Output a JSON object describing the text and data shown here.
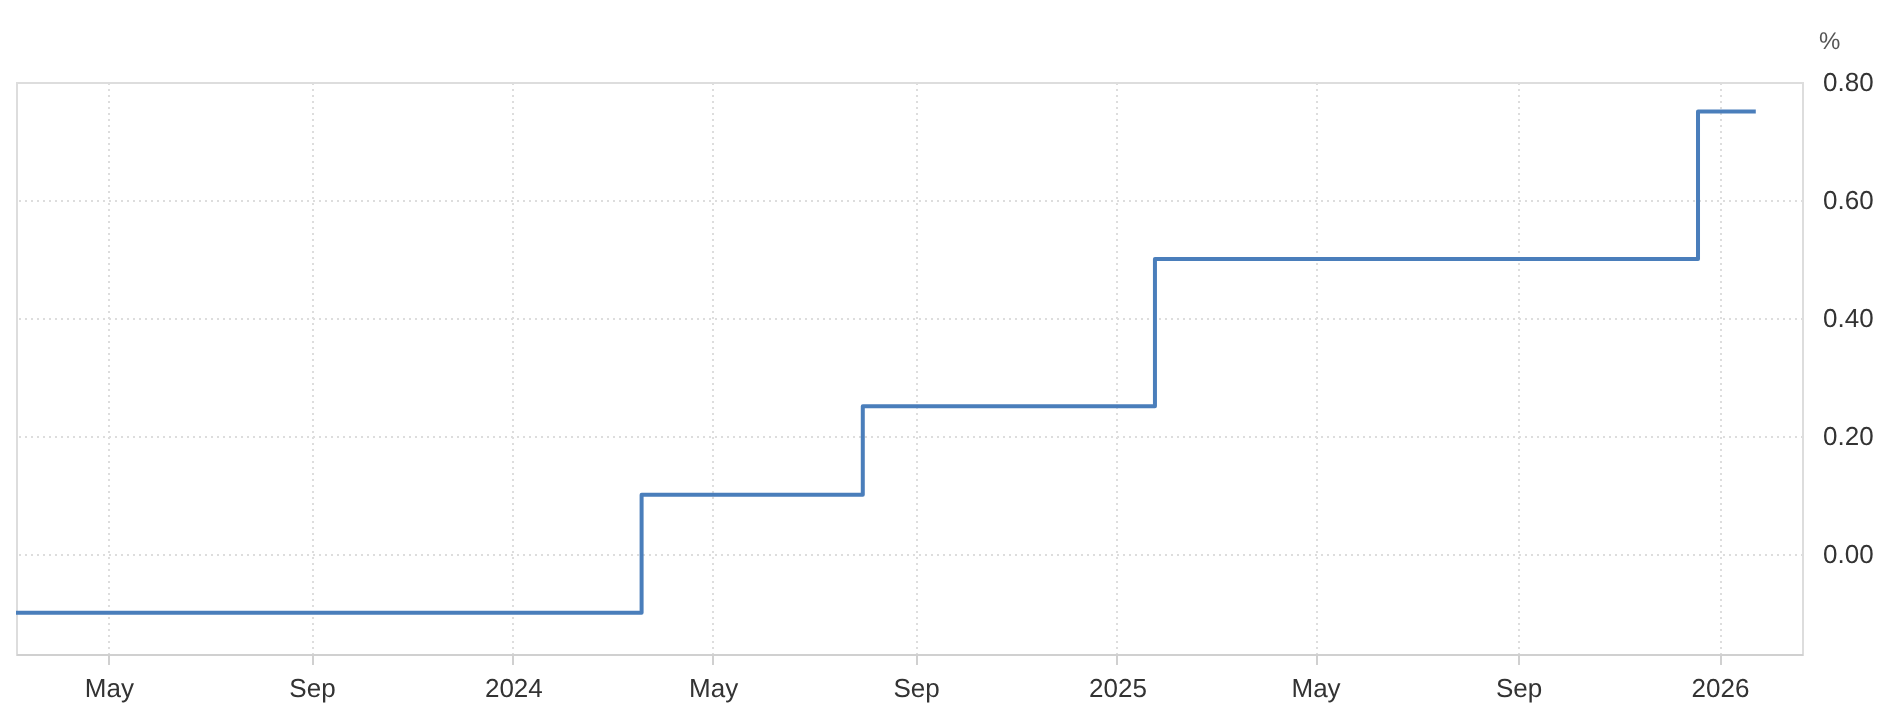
{
  "chart_data": {
    "type": "step",
    "ylabel": "%",
    "x": [
      "2023-03-06",
      "2024-03-19",
      "2024-07-31",
      "2025-01-24",
      "2025-12-19",
      "2026-01-23"
    ],
    "series": [
      {
        "color": "#4a7ebb",
        "values": [
          -0.1,
          0.1,
          0.25,
          0.5,
          0.75,
          0.75
        ]
      }
    ],
    "xlim": [
      "2023-03-06",
      "2026-02-20"
    ],
    "xticks": [
      {
        "value": "2023-05-01",
        "label": "May"
      },
      {
        "value": "2023-09-01",
        "label": "Sep"
      },
      {
        "value": "2024-01-01",
        "label": "2024"
      },
      {
        "value": "2024-05-01",
        "label": "May"
      },
      {
        "value": "2024-09-01",
        "label": "Sep"
      },
      {
        "value": "2025-01-01",
        "label": "2025"
      },
      {
        "value": "2025-05-01",
        "label": "May"
      },
      {
        "value": "2025-09-01",
        "label": "Sep"
      },
      {
        "value": "2026-01-01",
        "label": "2026"
      }
    ],
    "ylim": [
      -0.17,
      0.8
    ],
    "yticks": [
      {
        "value": 0,
        "label": "0.00"
      },
      {
        "value": 0.2,
        "label": "0.20"
      },
      {
        "value": 0.4,
        "label": "0.40"
      },
      {
        "value": 0.6,
        "label": "0.60"
      },
      {
        "value": 0.8,
        "label": "0.80"
      }
    ],
    "grid": true,
    "marker": "none",
    "line_style": "solid"
  }
}
